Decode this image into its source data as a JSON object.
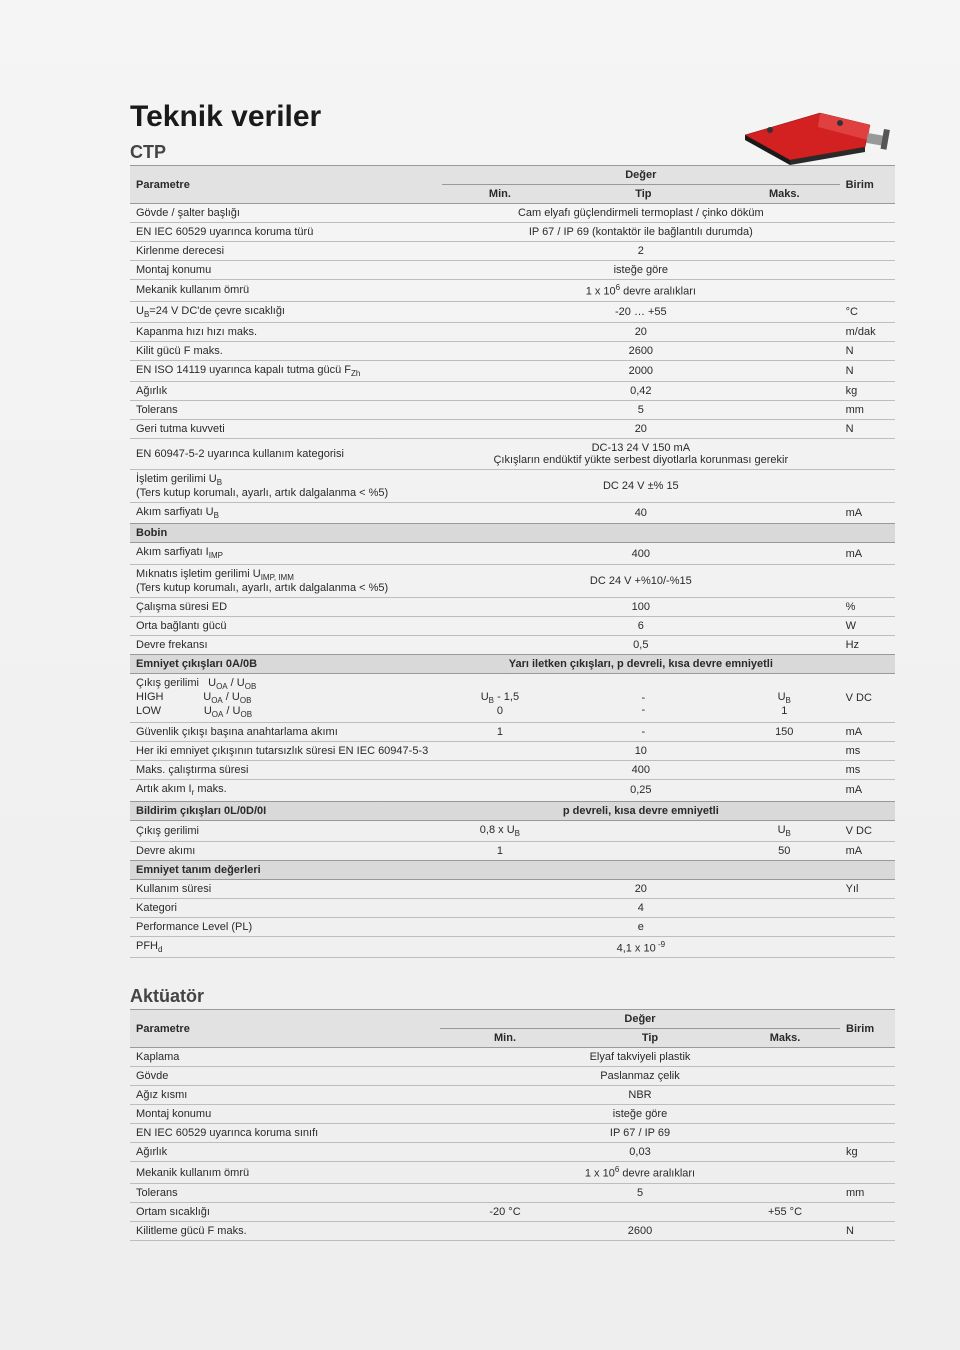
{
  "title": "Teknik veriler",
  "tables": {
    "ctp": {
      "heading": "CTP",
      "header": {
        "param": "Parametre",
        "valgroup": "Değer",
        "min": "Min.",
        "tip": "Tip",
        "max": "Maks.",
        "unit": "Birim"
      },
      "style": {
        "border_color": "#bdbdbd",
        "header_bg": "#e2e2e2",
        "section_bg": "#d9d9d9",
        "font_size_pt": 11,
        "text_color": "#2a2a2a"
      },
      "rows": [
        {
          "param": "Gövde / şalter başlığı",
          "span": "Cam elyafı güçlendirmeli termoplast / çinko döküm",
          "unit": ""
        },
        {
          "param": "EN IEC 60529 uyarınca koruma türü",
          "span": "IP 67 / IP 69 (kontaktör ile bağlantılı durumda)",
          "unit": ""
        },
        {
          "param": "Kirlenme derecesi",
          "span": "2",
          "unit": ""
        },
        {
          "param": "Montaj konumu",
          "span": "isteğe göre",
          "unit": ""
        },
        {
          "param": "Mekanik kullanım ömrü",
          "span_html": "1 x 10<span class='sup'>6</span> devre aralıkları",
          "unit": ""
        },
        {
          "param_html": "U<span class='sub'>B</span>=24 V DC'de çevre sıcaklığı",
          "span": "-20 … +55",
          "unit": "°C"
        },
        {
          "param": "Kapanma hızı hızı maks.",
          "span": "20",
          "unit": "m/dak"
        },
        {
          "param": "Kilit gücü F maks.",
          "span": "2600",
          "unit": "N"
        },
        {
          "param_html": "EN ISO 14119 uyarınca kapalı tutma gücü F<span class='sub'>Zh</span>",
          "span": "2000",
          "unit": "N"
        },
        {
          "param": "Ağırlık",
          "span": "0,42",
          "unit": "kg"
        },
        {
          "param": "Tolerans",
          "span": "5",
          "unit": "mm"
        },
        {
          "param": "Geri tutma kuvveti",
          "span": "20",
          "unit": "N"
        },
        {
          "param": "EN 60947-5-2 uyarınca kullanım kategorisi",
          "span_html": "DC-13 24 V 150 mA<br>Çıkışların endüktif yükte serbest diyotlarla korunması gerekir",
          "unit": ""
        },
        {
          "param_html": "İşletim gerilimi U<span class='sub'>B</span><br>(Ters kutup korumalı, ayarlı, artık dalgalanma &lt; %5)",
          "span": "DC 24 V ±% 15",
          "unit": ""
        },
        {
          "param_html": "Akım sarfiyatı U<span class='sub'>B</span>",
          "span": "40",
          "unit": "mA"
        },
        {
          "section": "Bobin"
        },
        {
          "param_html": "Akım sarfiyatı I<span class='sub'>IMP</span>",
          "span": "400",
          "unit": "mA"
        },
        {
          "param_html": "Mıknatıs işletim gerilimi U<span class='sub'>IMP, IMM</span><br>(Ters kutup korumalı, ayarlı, artık dalgalanma &lt; %5)",
          "span": "DC 24 V +%10/-%15",
          "unit": ""
        },
        {
          "param": "Çalışma süresi ED",
          "span": "100",
          "unit": "%"
        },
        {
          "param": "Orta bağlantı gücü",
          "span": "6",
          "unit": "W"
        },
        {
          "param": "Devre frekansı",
          "span": "0,5",
          "unit": "Hz"
        },
        {
          "section": "Emniyet çıkışları 0A/0B",
          "section_span": "Yarı iletken çıkışları, p devreli, kısa devre emniyetli"
        },
        {
          "param_html": "Çıkış gerilimi&nbsp;&nbsp;&nbsp;U<span class='sub'>OA</span> / U<span class='sub'>OB</span><br>HIGH&nbsp;&nbsp;&nbsp;&nbsp;&nbsp;&nbsp;&nbsp;&nbsp;&nbsp;&nbsp;&nbsp;&nbsp;&nbsp;U<span class='sub'>OA</span> / U<span class='sub'>OB</span><br>LOW&nbsp;&nbsp;&nbsp;&nbsp;&nbsp;&nbsp;&nbsp;&nbsp;&nbsp;&nbsp;&nbsp;&nbsp;&nbsp;&nbsp;U<span class='sub'>OA</span> / U<span class='sub'>OB</span>",
          "min_html": "<br>U<span class='sub'>B</span> - 1,5<br>0",
          "tip_html": "<br>-<br>-",
          "max_html": "<br>U<span class='sub'>B</span><br>1",
          "unit": "V DC"
        },
        {
          "param": "Güvenlik çıkışı başına anahtarlama akımı",
          "min": "1",
          "tip": "-",
          "max": "150",
          "unit": "mA"
        },
        {
          "param": "Her iki emniyet çıkışının tutarsızlık süresi EN IEC 60947-5-3",
          "span": "10",
          "unit": "ms"
        },
        {
          "param": "Maks. çalıştırma süresi",
          "span": "400",
          "unit": "ms"
        },
        {
          "param_html": "Artık akım I<span class='sub'>r</span> maks.",
          "span": "0,25",
          "unit": "mA"
        },
        {
          "section": "Bildirim çıkışları 0L/0D/0I",
          "section_span": "p devreli, kısa devre emniyetli"
        },
        {
          "param": "Çıkış gerilimi",
          "min_html": "0,8 x U<span class='sub'>B</span>",
          "tip": "",
          "max_html": "U<span class='sub'>B</span>",
          "unit": "V DC"
        },
        {
          "param": "Devre akımı",
          "min": "1",
          "tip": "",
          "max": "50",
          "unit": "mA"
        },
        {
          "section": "Emniyet tanım değerleri"
        },
        {
          "param": "Kullanım süresi",
          "span": "20",
          "unit": "Yıl"
        },
        {
          "param": "Kategori",
          "span": "4",
          "unit": ""
        },
        {
          "param": "Performance Level (PL)",
          "span": "e",
          "unit": ""
        },
        {
          "param_html": "PFH<span class='sub'>d</span>",
          "span_html": "4,1 x 10<span class='sup'> -9</span>",
          "unit": ""
        }
      ]
    },
    "akt": {
      "heading": "Aktüatör",
      "header": {
        "param": "Parametre",
        "valgroup": "Değer",
        "min": "Min.",
        "tip": "Tip",
        "max": "Maks.",
        "unit": "Birim"
      },
      "rows": [
        {
          "param": "Kaplama",
          "span": "Elyaf takviyeli plastik",
          "unit": ""
        },
        {
          "param": "Gövde",
          "span": "Paslanmaz çelik",
          "unit": ""
        },
        {
          "param": "Ağız kısmı",
          "span": "NBR",
          "unit": ""
        },
        {
          "param": "Montaj konumu",
          "span": "isteğe göre",
          "unit": ""
        },
        {
          "param": "EN IEC 60529 uyarınca koruma sınıfı",
          "span": "IP 67 / IP 69",
          "unit": ""
        },
        {
          "param": "Ağırlık",
          "span": "0,03",
          "unit": "kg"
        },
        {
          "param": "Mekanik kullanım ömrü",
          "span_html": "1 x 10<span class='sup'>6</span> devre aralıkları",
          "unit": ""
        },
        {
          "param": "Tolerans",
          "span": "5",
          "unit": "mm"
        },
        {
          "param": "Ortam sıcaklığı",
          "min": "-20 °C",
          "tip": "",
          "max": "+55 °C",
          "unit": ""
        },
        {
          "param": "Kilitleme gücü F maks.",
          "span": "2600",
          "unit": "N"
        }
      ]
    }
  },
  "product_image": {
    "body_color": "#d32020",
    "accent_color": "#222222",
    "cable_color": "#888888"
  }
}
